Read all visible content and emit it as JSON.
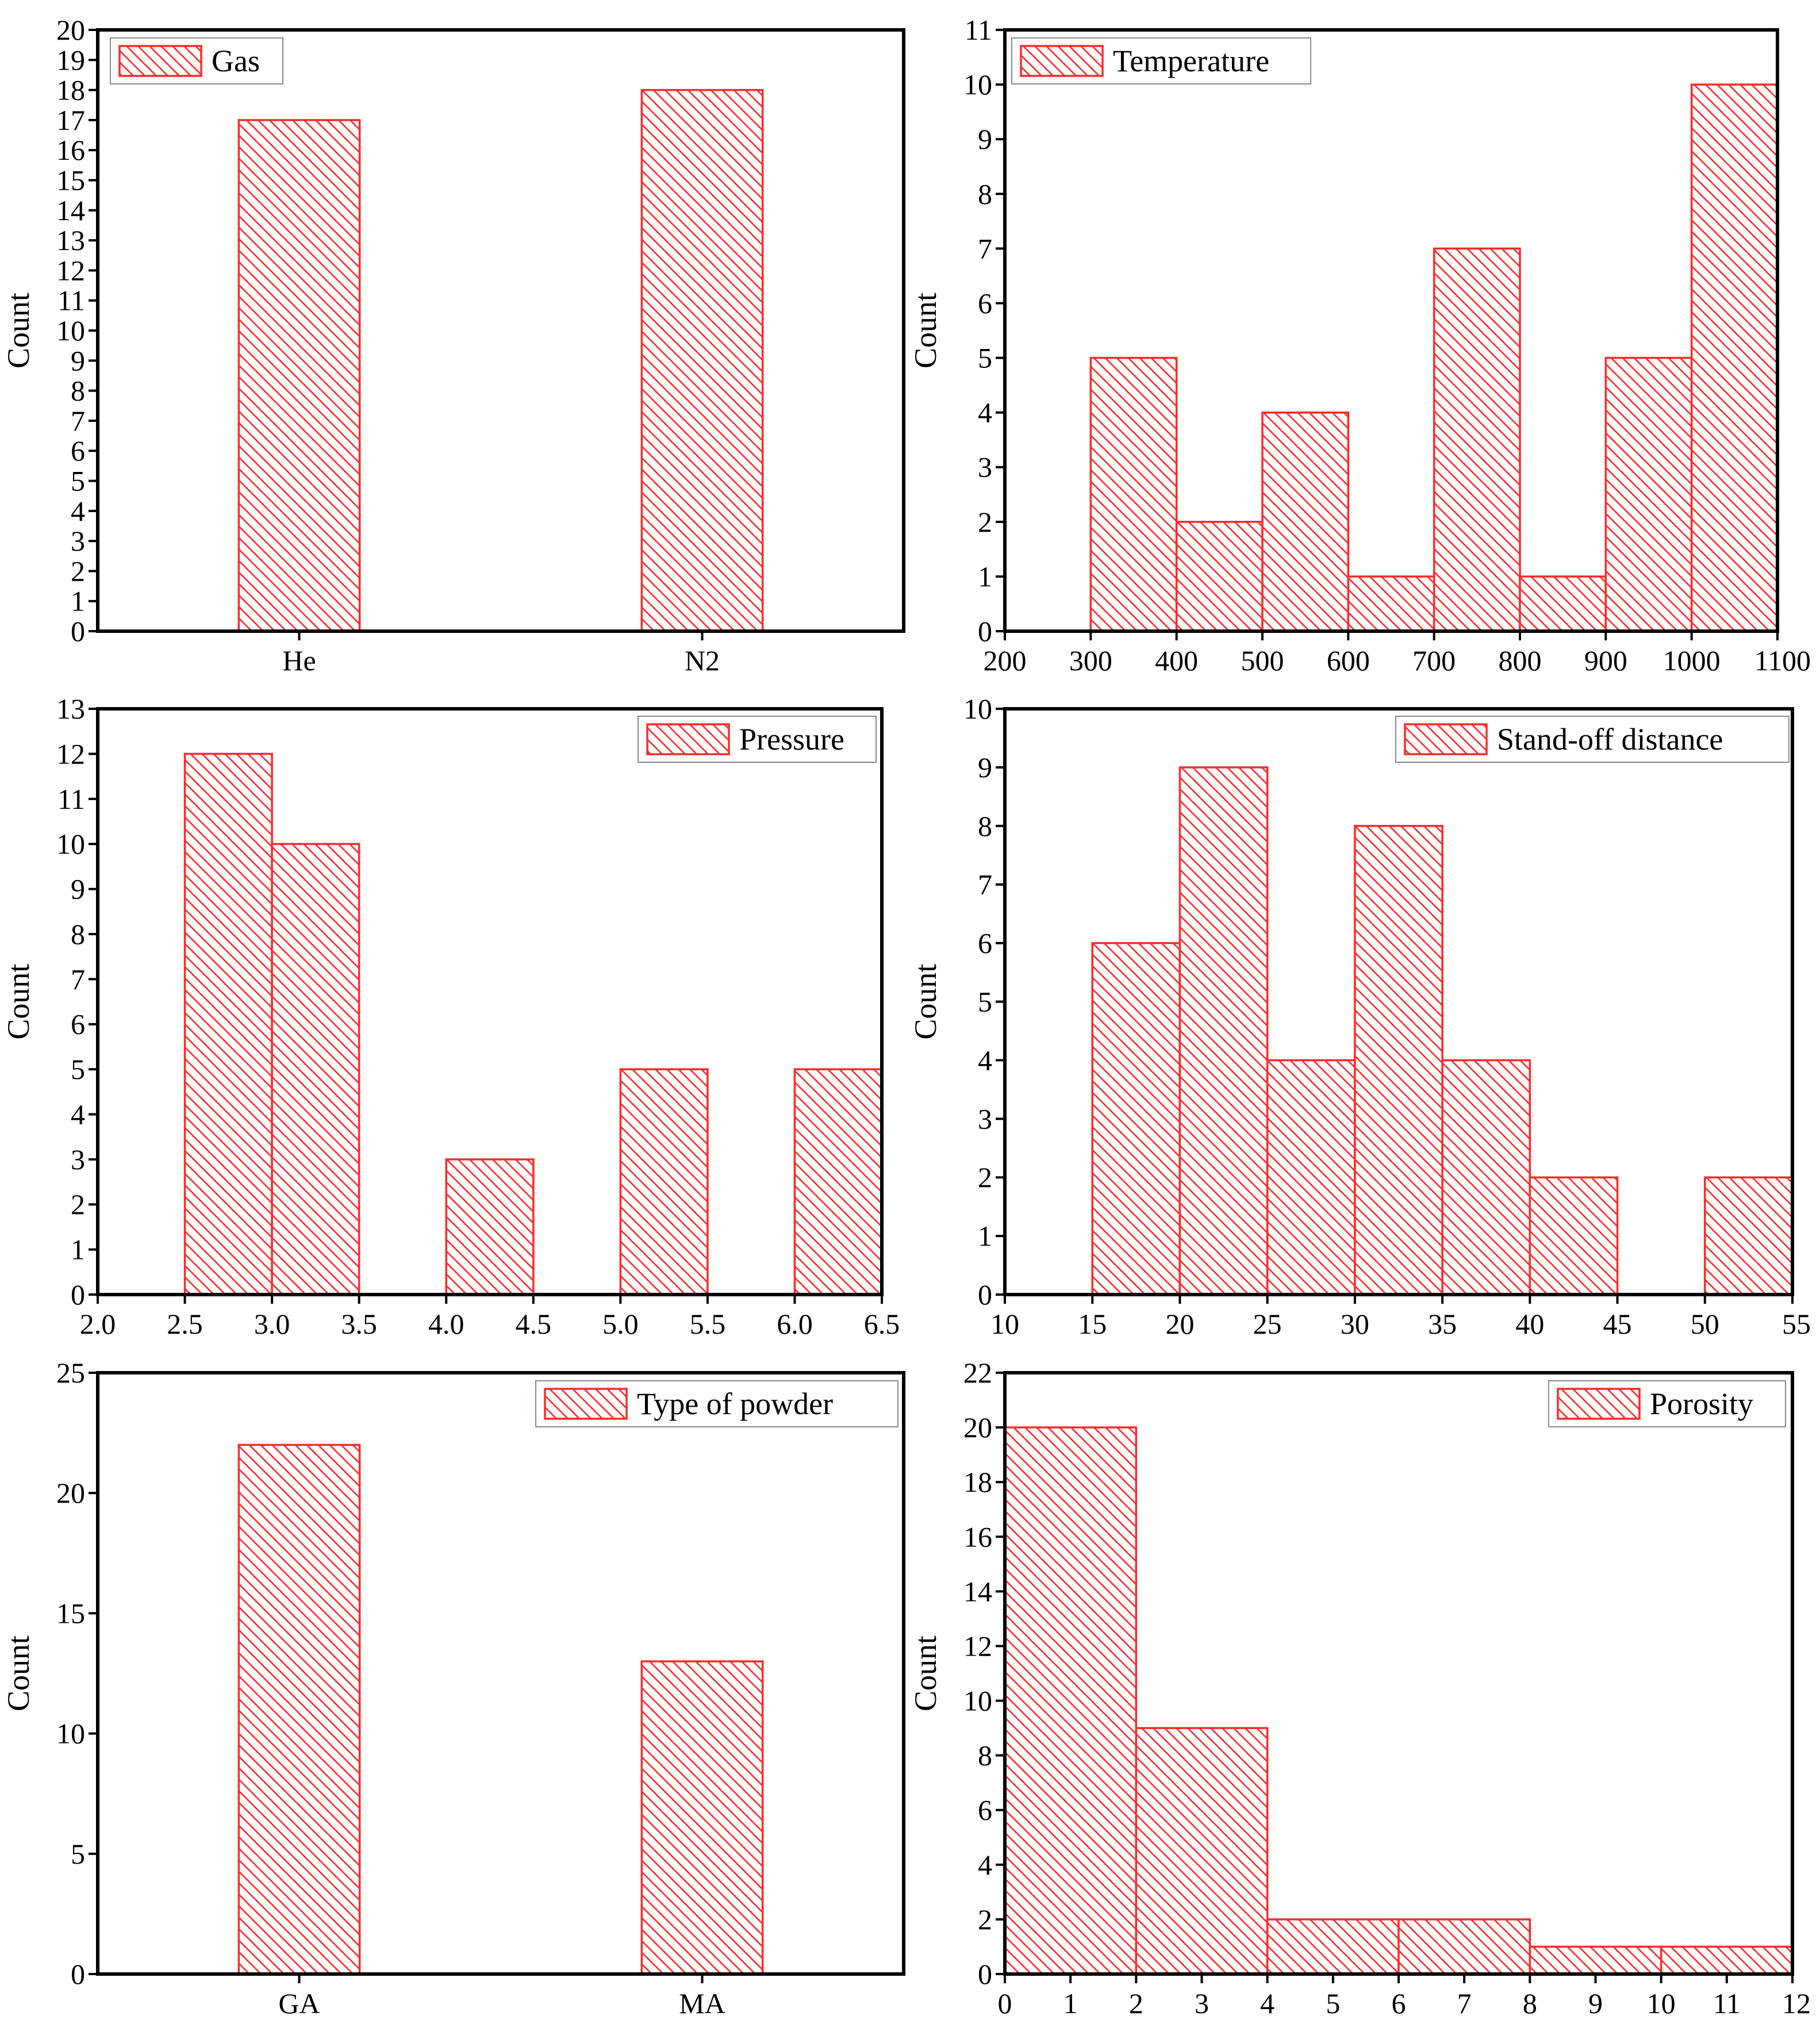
{
  "chart_data": [
    {
      "type": "bar",
      "legend": "Gas",
      "legend_position": "top-left",
      "ylabel": "Count",
      "xlabel": "",
      "categories": [
        "He",
        "N2"
      ],
      "values": [
        17,
        18
      ],
      "ylim": [
        0,
        20
      ],
      "yticks": [
        0,
        1,
        2,
        3,
        4,
        5,
        6,
        7,
        8,
        9,
        10,
        11,
        12,
        13,
        14,
        15,
        16,
        17,
        18,
        19,
        20
      ],
      "color": "#ff2a2a"
    },
    {
      "type": "histogram",
      "legend": "Temperature",
      "legend_position": "top-left",
      "ylabel": "Count",
      "xlabel": "",
      "bins": [
        [
          300,
          400
        ],
        [
          400,
          500
        ],
        [
          500,
          600
        ],
        [
          600,
          700
        ],
        [
          700,
          800
        ],
        [
          800,
          900
        ],
        [
          900,
          1000
        ],
        [
          1000,
          1100
        ]
      ],
      "values": [
        5,
        2,
        4,
        1,
        7,
        1,
        5,
        10
      ],
      "xlim": [
        200,
        1100
      ],
      "xticks": [
        200,
        300,
        400,
        500,
        600,
        700,
        800,
        900,
        1000,
        1100
      ],
      "ylim": [
        0,
        11
      ],
      "yticks": [
        0,
        1,
        2,
        3,
        4,
        5,
        6,
        7,
        8,
        9,
        10,
        11
      ],
      "color": "#ff2a2a"
    },
    {
      "type": "histogram",
      "legend": "Pressure",
      "legend_position": "top-right",
      "ylabel": "Count",
      "xlabel": "",
      "bins": [
        [
          2.5,
          3.0
        ],
        [
          3.0,
          3.5
        ],
        [
          4.0,
          4.5
        ],
        [
          5.0,
          5.5
        ],
        [
          6.0,
          6.5
        ]
      ],
      "values": [
        12,
        10,
        3,
        5,
        5
      ],
      "xlim": [
        2.0,
        6.5
      ],
      "xticks": [
        "2.0",
        "2.5",
        "3.0",
        "3.5",
        "4.0",
        "4.5",
        "5.0",
        "5.5",
        "6.0",
        "6.5"
      ],
      "ylim": [
        0,
        13
      ],
      "yticks": [
        0,
        1,
        2,
        3,
        4,
        5,
        6,
        7,
        8,
        9,
        10,
        11,
        12,
        13
      ],
      "color": "#ff2a2a"
    },
    {
      "type": "histogram",
      "legend": "Stand-off distance",
      "legend_position": "top-right",
      "ylabel": "Count",
      "xlabel": "",
      "bins": [
        [
          15,
          20
        ],
        [
          20,
          25
        ],
        [
          25,
          30
        ],
        [
          30,
          35
        ],
        [
          35,
          40
        ],
        [
          40,
          45
        ],
        [
          50,
          55
        ]
      ],
      "values": [
        6,
        9,
        4,
        8,
        4,
        2,
        2
      ],
      "xlim": [
        10,
        55
      ],
      "xticks": [
        10,
        15,
        20,
        25,
        30,
        35,
        40,
        45,
        50,
        55
      ],
      "ylim": [
        0,
        10
      ],
      "yticks": [
        0,
        1,
        2,
        3,
        4,
        5,
        6,
        7,
        8,
        9,
        10
      ],
      "color": "#ff2a2a"
    },
    {
      "type": "bar",
      "legend": "Type of powder",
      "legend_position": "top-right",
      "ylabel": "Count",
      "xlabel": "",
      "categories": [
        "GA",
        "MA"
      ],
      "values": [
        22,
        13
      ],
      "ylim": [
        0,
        25
      ],
      "yticks": [
        0,
        5,
        10,
        15,
        20,
        25
      ],
      "color": "#ff2a2a"
    },
    {
      "type": "histogram",
      "legend": "Porosity",
      "legend_position": "top-right",
      "ylabel": "Count",
      "xlabel": "",
      "bins": [
        [
          0,
          2
        ],
        [
          2,
          4
        ],
        [
          4,
          6
        ],
        [
          6,
          8
        ],
        [
          8,
          10
        ],
        [
          10,
          12
        ]
      ],
      "values": [
        20,
        9,
        2,
        2,
        1,
        1
      ],
      "xlim": [
        0,
        12
      ],
      "xticks": [
        0,
        1,
        2,
        3,
        4,
        5,
        6,
        7,
        8,
        9,
        10,
        11,
        12
      ],
      "ylim": [
        0,
        22
      ],
      "yticks": [
        0,
        2,
        4,
        6,
        8,
        10,
        12,
        14,
        16,
        18,
        20,
        22
      ],
      "color": "#ff2a2a"
    }
  ]
}
